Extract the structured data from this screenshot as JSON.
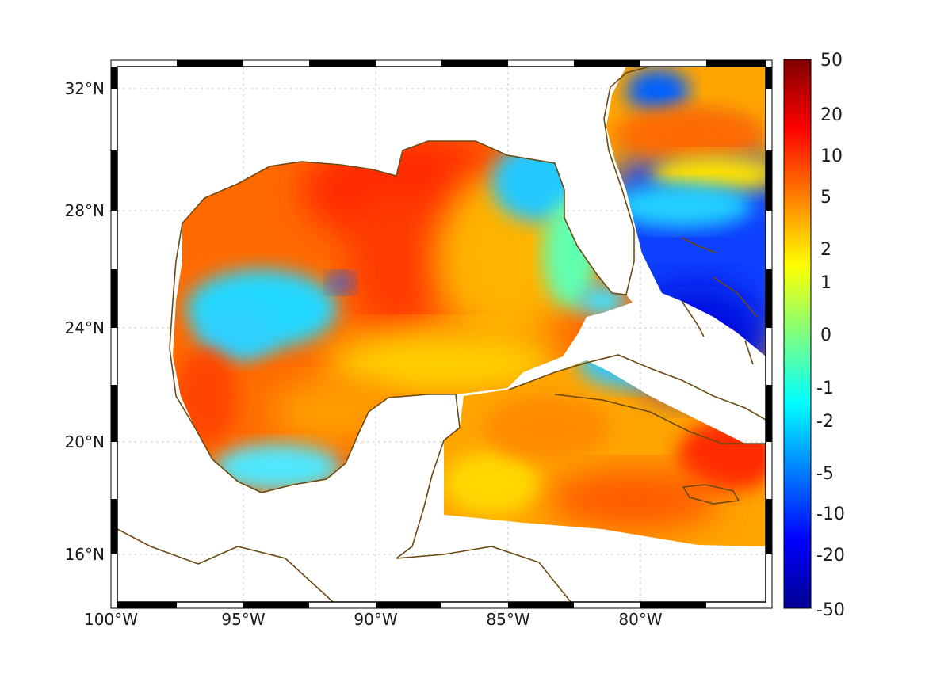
{
  "map": {
    "extent": {
      "lon_min": -100,
      "lon_max": -75.2,
      "lat_min": 14.2,
      "lat_max": 33.0
    },
    "x_tick_labels": [
      "100°W",
      "95°W",
      "90°W",
      "85°W",
      "80°W"
    ],
    "x_tick_lons": [
      -100,
      -95,
      -90,
      -85,
      -80
    ],
    "y_tick_labels": [
      "32°N",
      "28°N",
      "24°N",
      "20°N",
      "16°N"
    ],
    "y_tick_lats": [
      32,
      28,
      24,
      20,
      16
    ],
    "grid": true,
    "colormap": "jet",
    "coastline_color": "#6b4a12"
  },
  "colorbar": {
    "labels": [
      "50",
      "20",
      "10",
      "5",
      "2",
      "1",
      "0",
      "-1",
      "-2",
      "-5",
      "-10",
      "-20",
      "-50"
    ]
  }
}
